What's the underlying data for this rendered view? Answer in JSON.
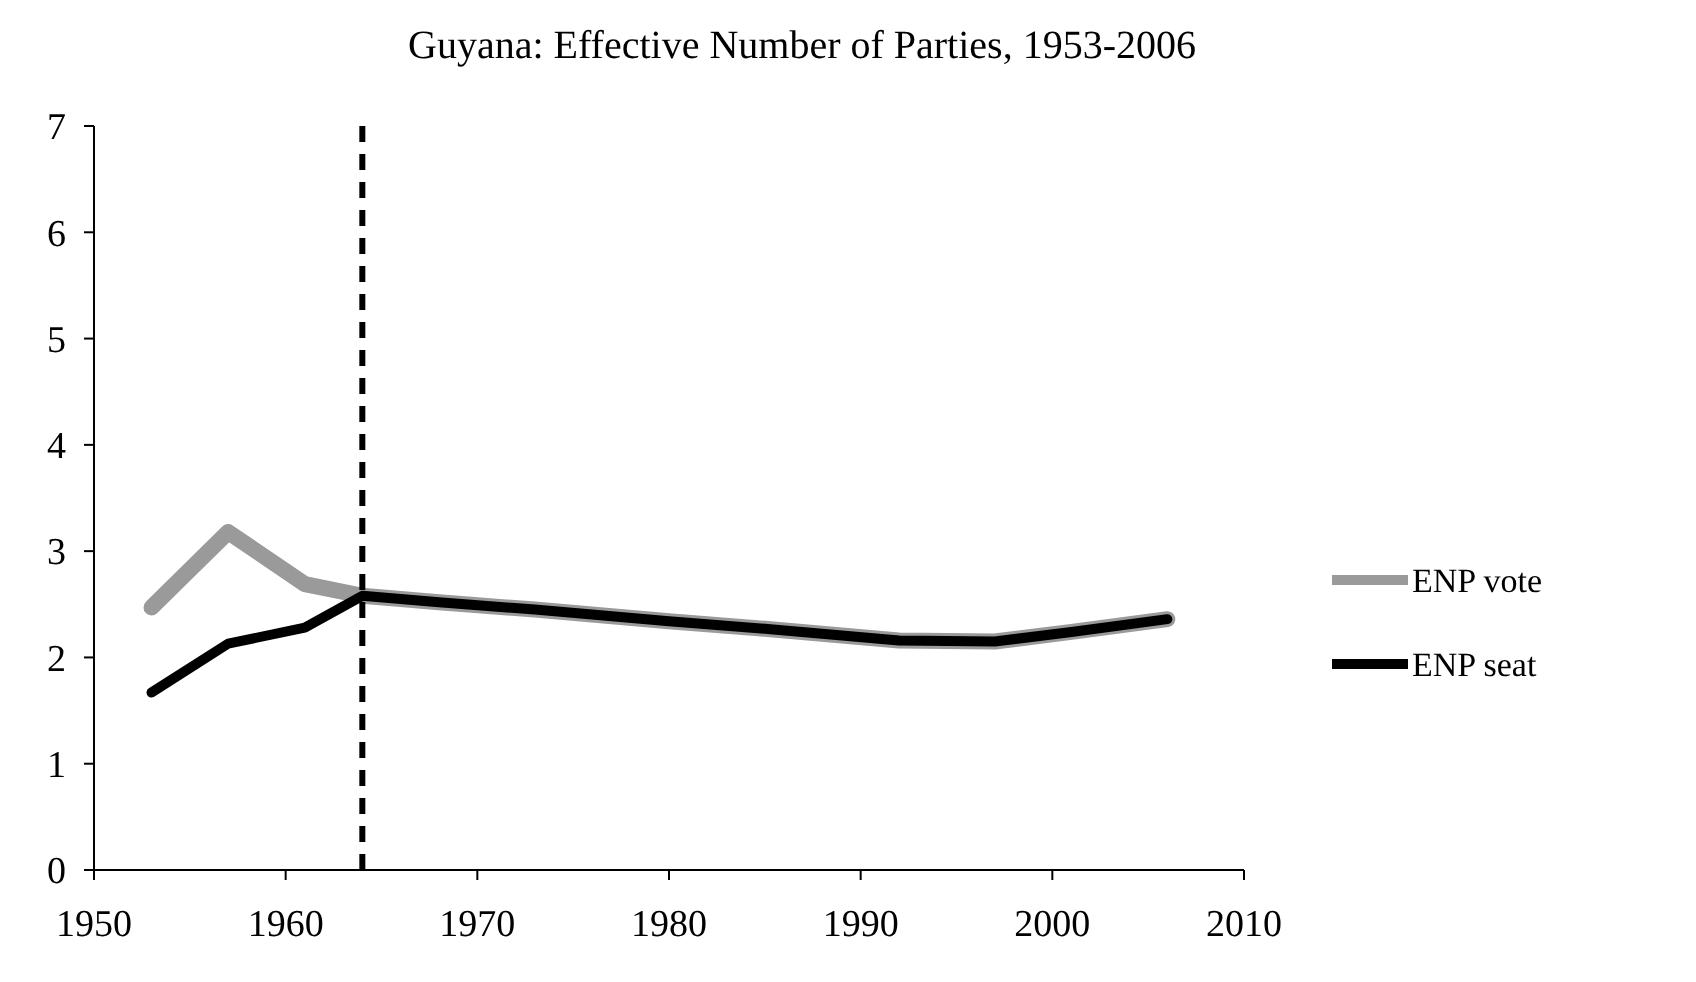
{
  "chart_data": {
    "type": "line",
    "title": "Guyana: Effective Number of Parties, 1953-2006",
    "x": [
      1953,
      1957,
      1961,
      1964,
      1968,
      1973,
      1980,
      1985,
      1992,
      1997,
      2001,
      2006
    ],
    "series": [
      {
        "name": "ENP vote",
        "color": "#9a9a9a",
        "values": [
          2.47,
          3.18,
          2.69,
          2.58,
          2.52,
          2.45,
          2.34,
          2.27,
          2.16,
          2.15,
          2.24,
          2.36
        ]
      },
      {
        "name": "ENP seat",
        "color": "#000000",
        "values": [
          1.67,
          2.13,
          2.28,
          2.58,
          2.52,
          2.45,
          2.34,
          2.27,
          2.16,
          2.15,
          2.24,
          2.36
        ]
      }
    ],
    "xlim": [
      1950,
      2010
    ],
    "xticks": [
      1950,
      1960,
      1970,
      1980,
      1990,
      2000,
      2010
    ],
    "ylim": [
      0,
      7
    ],
    "yticks": [
      0,
      1,
      2,
      3,
      4,
      5,
      6,
      7
    ],
    "ref_lines": [
      {
        "axis": "x",
        "value": 1964,
        "color": "#000000",
        "line_style": "dashed"
      }
    ],
    "legend": "right",
    "grid": false,
    "marker": "none",
    "line_style": "solid"
  }
}
